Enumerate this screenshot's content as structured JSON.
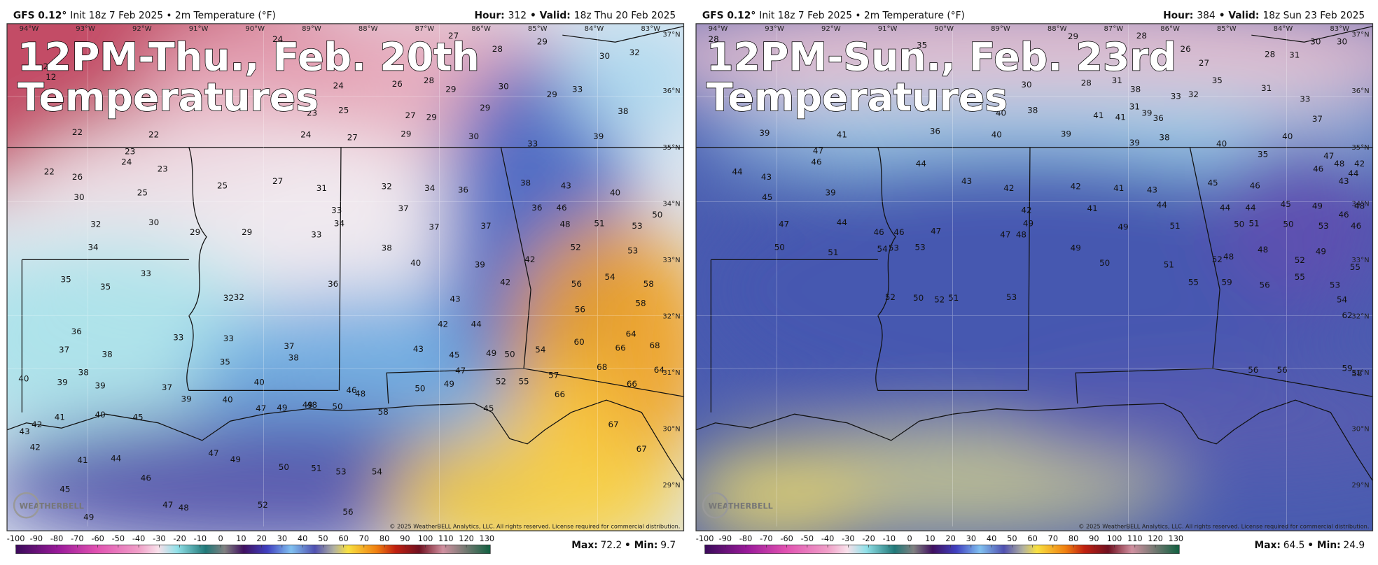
{
  "panels": [
    {
      "model": "GFS 0.12°",
      "run": "Init 18z 7 Feb 2025 • 2m Temperature (°F)",
      "hour_label": "Hour:",
      "hour": 312,
      "valid_label": "• Valid:",
      "valid": "18z Thu 20 Feb 2025",
      "headline": [
        "12PM-Thu., Feb. 20th",
        "Temperatures"
      ],
      "max_label": "Max:",
      "max": 72.2,
      "min_label": "• Min:",
      "min": 9.7,
      "temps": [
        24,
        27,
        29,
        28,
        32,
        30,
        23,
        12,
        24,
        26,
        28,
        29,
        30,
        29,
        33,
        23,
        25,
        27,
        29,
        29,
        38,
        22,
        22,
        24,
        27,
        29,
        30,
        33,
        39,
        23,
        24,
        22,
        26,
        23,
        25,
        27,
        31,
        32,
        34,
        36,
        38,
        43,
        40,
        30,
        25,
        33,
        37,
        36,
        46,
        50,
        32,
        30,
        29,
        29,
        33,
        34,
        37,
        37,
        48,
        51,
        53,
        34,
        38,
        52,
        53,
        40,
        39,
        42,
        54,
        58,
        33,
        35,
        35,
        36,
        42,
        56,
        32,
        32,
        43,
        58,
        56,
        36,
        33,
        33,
        42,
        44,
        64,
        60,
        37,
        38,
        37,
        38,
        43,
        49,
        50,
        54,
        66,
        68,
        35,
        45,
        38,
        47,
        68,
        64,
        40,
        39,
        39,
        37,
        40,
        52,
        55,
        57,
        66,
        46,
        48,
        50,
        49,
        39,
        40,
        66,
        43,
        42,
        41,
        40,
        45,
        47,
        49,
        49,
        48,
        50,
        58,
        45,
        42,
        41,
        44,
        46,
        47,
        49,
        50,
        51,
        53,
        54,
        67,
        67,
        45,
        49,
        47,
        48,
        52,
        56
      ]
    },
    {
      "model": "GFS 0.12°",
      "run": "Init 18z 7 Feb 2025 • 2m Temperature (°F)",
      "hour_label": "Hour:",
      "hour": 384,
      "valid_label": "• Valid:",
      "valid": "18z Sun 23 Feb 2025",
      "headline": [
        "12PM-Sun., Feb. 23rd",
        "Temperatures"
      ],
      "max_label": "Max:",
      "max": 64.5,
      "min_label": "• Min:",
      "min": 24.9,
      "temps": [
        28,
        35,
        29,
        28,
        26,
        27,
        28,
        30,
        30,
        31,
        30,
        28,
        31,
        38,
        33,
        35,
        31,
        32,
        31,
        33,
        36,
        40,
        38,
        41,
        41,
        39,
        37,
        36,
        40,
        39,
        39,
        38,
        40,
        39,
        41,
        40,
        35,
        47,
        46,
        44,
        43,
        42,
        42,
        41,
        43,
        45,
        46,
        46,
        47,
        48,
        42,
        44,
        43,
        44,
        43,
        45,
        39,
        42,
        41,
        44,
        44,
        44,
        45,
        49,
        48,
        46,
        46,
        47,
        44,
        46,
        46,
        47,
        47,
        48,
        49,
        49,
        51,
        50,
        51,
        50,
        53,
        48,
        48,
        49,
        49,
        50,
        51,
        52,
        52,
        50,
        51,
        54,
        53,
        53,
        52,
        50,
        52,
        51,
        53,
        55,
        56,
        55,
        53,
        55,
        54,
        59,
        62,
        59,
        58,
        56,
        56
      ]
    }
  ],
  "map_grid": {
    "lon": [
      "94°W",
      "93°W",
      "92°W",
      "91°W",
      "90°W",
      "89°W",
      "88°W",
      "87°W",
      "86°W",
      "85°W",
      "84°W",
      "83°W"
    ],
    "lat": [
      "37°N",
      "36°N",
      "35°N",
      "34°N",
      "33°N",
      "32°N",
      "31°N",
      "30°N",
      "29°N"
    ]
  },
  "colorbar": {
    "ticks": [
      -100,
      -90,
      -80,
      -70,
      -60,
      -50,
      -40,
      -30,
      -20,
      -10,
      0,
      10,
      20,
      30,
      40,
      50,
      60,
      70,
      80,
      90,
      100,
      110,
      120,
      130
    ]
  },
  "logo": "WEATHERBELL",
  "copyright": "© 2025 WeatherBELL Analytics, LLC. All rights reserved. License required for commercial distribution."
}
